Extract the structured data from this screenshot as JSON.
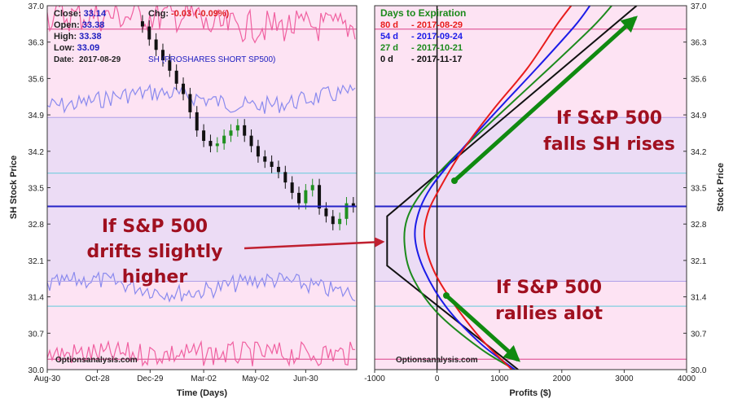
{
  "colors": {
    "pink_bg": "#fde3f3",
    "purple_band": "#ecdcf5",
    "current_price_line": "#2424c8",
    "cyan_line": "#80cfe0",
    "pink_line": "#e0609c",
    "candle_green": "#209020",
    "arrow_green": "#108a10",
    "annotation_red": "#a01020",
    "pointer_red": "#c02030",
    "iv_line": "#8a8aee",
    "vol_line": "#f060a0"
  },
  "info": {
    "close_label": "Close:",
    "close_value": "33.14",
    "open_label": "Open:",
    "open_value": "33.38",
    "high_label": "High:",
    "high_value": "33.38",
    "low_label": "Low:",
    "low_value": "33.09",
    "date_label": "Date:",
    "date_value": "2017-08-29",
    "chg_label": "Chg:",
    "chg_value": "-0.03",
    "chg_pct": "(-0.09%)",
    "symbol_desc": "SH (PROSHARES SHORT SP500)"
  },
  "watermark": "Optionsanalysis.com",
  "legend": {
    "title": "Days to Expiration",
    "items": [
      {
        "days": "80 d",
        "date": "- 2017-08-29",
        "color": "#e81c1c"
      },
      {
        "days": "54 d",
        "date": "- 2017-09-24",
        "color": "#1c1ce8"
      },
      {
        "days": "27 d",
        "date": "- 2017-10-21",
        "color": "#1c8a1c"
      },
      {
        "days": "0 d",
        "date": "- 2017-11-17",
        "color": "#111111"
      }
    ]
  },
  "annotations": {
    "mid_left": [
      "If S&P 500",
      "drifts slightly",
      "higher"
    ],
    "top_right": [
      "If S&P 500",
      "falls SH rises"
    ],
    "bottom_right": [
      "If S&P 500",
      "rallies alot"
    ]
  },
  "chart_data": [
    {
      "type": "line",
      "name": "price-history",
      "xlabel": "Time (Days)",
      "ylabel": "SH Stock Price",
      "ylim": [
        30.0,
        37.0
      ],
      "y_ticks": [
        "37.0",
        "36.3",
        "35.6",
        "34.9",
        "34.2",
        "33.5",
        "32.8",
        "32.1",
        "31.4",
        "30.7",
        "30.0"
      ],
      "x_ticks": [
        "Aug-30",
        "Oct-28",
        "Dec-29",
        "Mar-02",
        "May-02",
        "Jun-30"
      ],
      "x_tick_days": [
        0,
        59,
        121,
        184,
        245,
        304
      ],
      "x_range_days": [
        0,
        364
      ],
      "current_price": 33.14,
      "reference_lines": [
        33.78,
        36.55,
        31.22,
        30.2
      ],
      "band": [
        31.7,
        34.85
      ],
      "candles": {
        "x_days": [
          112,
          120,
          128,
          136,
          144,
          152,
          160,
          168,
          176,
          184,
          192,
          200,
          208,
          216,
          224,
          232,
          240,
          248,
          256,
          264,
          272,
          280,
          288,
          296,
          304,
          312,
          320,
          328,
          336,
          344,
          352,
          360
        ],
        "close": [
          36.6,
          36.35,
          36.15,
          35.95,
          35.75,
          35.5,
          35.3,
          34.95,
          34.6,
          34.4,
          34.3,
          34.35,
          34.5,
          34.6,
          34.7,
          34.5,
          34.3,
          34.1,
          34.0,
          33.9,
          33.8,
          33.6,
          33.4,
          33.2,
          33.45,
          33.55,
          33.1,
          32.95,
          32.8,
          32.9,
          33.2,
          33.14
        ]
      }
    },
    {
      "type": "line",
      "name": "profit-loss",
      "xlabel": "Profits ($)",
      "ylabel": "Stock Price",
      "xlim": [
        -1000,
        4000
      ],
      "ylim": [
        30.0,
        37.0
      ],
      "x_ticks": [
        "-1000",
        "0",
        "1000",
        "2000",
        "3000",
        "4000"
      ],
      "y_ticks": [
        "37.0",
        "36.3",
        "35.6",
        "34.9",
        "34.2",
        "33.5",
        "32.8",
        "32.1",
        "31.4",
        "30.7",
        "30.0"
      ],
      "series": [
        {
          "name": "0 d",
          "color": "#111111",
          "points": [
            [
              1300,
              30.0
            ],
            [
              -800,
              32.0
            ],
            [
              -800,
              32.95
            ],
            [
              3200,
              37.0
            ]
          ]
        },
        {
          "name": "27 d",
          "color": "#1c8a1c",
          "points": [
            [
              1250,
              30.0
            ],
            [
              700,
              30.4
            ],
            [
              0,
              31.1
            ],
            [
              -400,
              31.8
            ],
            [
              -520,
              32.4
            ],
            [
              -480,
              32.9
            ],
            [
              -250,
              33.4
            ],
            [
              200,
              34.0
            ],
            [
              900,
              34.8
            ],
            [
              1800,
              35.8
            ],
            [
              2500,
              36.6
            ],
            [
              2800,
              37.0
            ]
          ]
        },
        {
          "name": "54 d",
          "color": "#1c1ce8",
          "points": [
            [
              1250,
              30.0
            ],
            [
              700,
              30.5
            ],
            [
              150,
              31.2
            ],
            [
              -200,
              31.9
            ],
            [
              -350,
              32.5
            ],
            [
              -300,
              33.0
            ],
            [
              -100,
              33.5
            ],
            [
              300,
              34.1
            ],
            [
              900,
              34.9
            ],
            [
              1600,
              35.8
            ],
            [
              2200,
              36.6
            ],
            [
              2450,
              37.0
            ]
          ]
        },
        {
          "name": "80 d",
          "color": "#e81c1c",
          "points": [
            [
              1200,
              30.0
            ],
            [
              700,
              30.6
            ],
            [
              250,
              31.3
            ],
            [
              -50,
              31.9
            ],
            [
              -200,
              32.5
            ],
            [
              -150,
              33.0
            ],
            [
              50,
              33.5
            ],
            [
              400,
              34.2
            ],
            [
              900,
              35.0
            ],
            [
              1450,
              35.8
            ],
            [
              1900,
              36.6
            ],
            [
              2150,
              37.0
            ]
          ]
        }
      ]
    }
  ]
}
